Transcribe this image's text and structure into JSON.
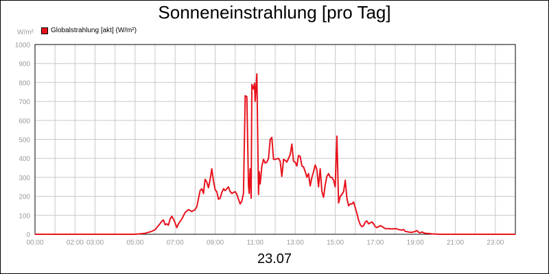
{
  "chart_data": {
    "type": "line",
    "title": "Sonneneinstrahlung [pro Tag]",
    "ylabel": "W/m²",
    "date_label": "23.07",
    "legend": {
      "position": "top-left"
    },
    "grid": true,
    "ylim": [
      0,
      1000
    ],
    "y_ticks": [
      0,
      100,
      200,
      300,
      400,
      500,
      600,
      700,
      800,
      900,
      1000
    ],
    "xlim": [
      "00:00",
      "24:00"
    ],
    "x_tick_labels": [
      {
        "at": "00:00",
        "label": "00:00"
      },
      {
        "at": "02:00",
        "label": "02:00"
      },
      {
        "at": "03:00",
        "label": "03:00"
      },
      {
        "at": "05:00",
        "label": "05:00"
      },
      {
        "at": "07:00",
        "label": "07:00"
      },
      {
        "at": "09:00",
        "label": "09:00"
      },
      {
        "at": "11:00",
        "label": "11:00"
      },
      {
        "at": "13:00",
        "label": "13:00"
      },
      {
        "at": "15:00",
        "label": "15:00"
      },
      {
        "at": "17:00",
        "label": "17:00"
      },
      {
        "at": "19:00",
        "label": "19:00"
      },
      {
        "at": "21:00",
        "label": "21:00"
      },
      {
        "at": "23:00",
        "label": "23:00"
      }
    ],
    "series": [
      {
        "name": "Globalstrahlung [akt] (W/m²)",
        "color": "#e8101a",
        "points": [
          [
            "00:00",
            0
          ],
          [
            "05:00",
            0
          ],
          [
            "05:30",
            5
          ],
          [
            "05:50",
            15
          ],
          [
            "06:00",
            25
          ],
          [
            "06:10",
            45
          ],
          [
            "06:20",
            68
          ],
          [
            "06:25",
            75
          ],
          [
            "06:30",
            50
          ],
          [
            "06:35",
            55
          ],
          [
            "06:40",
            48
          ],
          [
            "06:45",
            80
          ],
          [
            "06:50",
            95
          ],
          [
            "06:55",
            80
          ],
          [
            "07:00",
            60
          ],
          [
            "07:05",
            35
          ],
          [
            "07:10",
            55
          ],
          [
            "07:20",
            80
          ],
          [
            "07:30",
            115
          ],
          [
            "07:40",
            130
          ],
          [
            "07:50",
            120
          ],
          [
            "08:00",
            130
          ],
          [
            "08:05",
            145
          ],
          [
            "08:15",
            230
          ],
          [
            "08:20",
            240
          ],
          [
            "08:25",
            215
          ],
          [
            "08:30",
            290
          ],
          [
            "08:35",
            275
          ],
          [
            "08:40",
            245
          ],
          [
            "08:45",
            290
          ],
          [
            "08:50",
            345
          ],
          [
            "08:55",
            280
          ],
          [
            "09:00",
            235
          ],
          [
            "09:05",
            225
          ],
          [
            "09:10",
            185
          ],
          [
            "09:15",
            190
          ],
          [
            "09:20",
            220
          ],
          [
            "09:25",
            240
          ],
          [
            "09:30",
            230
          ],
          [
            "09:40",
            250
          ],
          [
            "09:45",
            225
          ],
          [
            "09:50",
            215
          ],
          [
            "10:00",
            225
          ],
          [
            "10:05",
            210
          ],
          [
            "10:10",
            185
          ],
          [
            "10:15",
            160
          ],
          [
            "10:20",
            175
          ],
          [
            "10:25",
            215
          ],
          [
            "10:30",
            730
          ],
          [
            "10:35",
            725
          ],
          [
            "10:40",
            255
          ],
          [
            "10:42",
            215
          ],
          [
            "10:45",
            345
          ],
          [
            "10:48",
            190
          ],
          [
            "10:50",
            790
          ],
          [
            "10:55",
            765
          ],
          [
            "10:58",
            795
          ],
          [
            "11:00",
            700
          ],
          [
            "11:05",
            845
          ],
          [
            "11:10",
            210
          ],
          [
            "11:12",
            330
          ],
          [
            "11:15",
            265
          ],
          [
            "11:20",
            360
          ],
          [
            "11:25",
            395
          ],
          [
            "11:30",
            375
          ],
          [
            "11:35",
            380
          ],
          [
            "11:40",
            400
          ],
          [
            "11:45",
            500
          ],
          [
            "11:50",
            510
          ],
          [
            "11:55",
            395
          ],
          [
            "12:00",
            395
          ],
          [
            "12:10",
            400
          ],
          [
            "12:15",
            385
          ],
          [
            "12:20",
            305
          ],
          [
            "12:25",
            395
          ],
          [
            "12:30",
            390
          ],
          [
            "12:35",
            380
          ],
          [
            "12:40",
            400
          ],
          [
            "12:45",
            420
          ],
          [
            "12:50",
            475
          ],
          [
            "12:55",
            385
          ],
          [
            "13:00",
            380
          ],
          [
            "13:05",
            360
          ],
          [
            "13:10",
            415
          ],
          [
            "13:15",
            410
          ],
          [
            "13:20",
            360
          ],
          [
            "13:25",
            355
          ],
          [
            "13:30",
            330
          ],
          [
            "13:35",
            300
          ],
          [
            "13:40",
            320
          ],
          [
            "13:45",
            255
          ],
          [
            "13:50",
            300
          ],
          [
            "13:55",
            330
          ],
          [
            "14:00",
            365
          ],
          [
            "14:05",
            340
          ],
          [
            "14:10",
            250
          ],
          [
            "14:15",
            345
          ],
          [
            "14:20",
            225
          ],
          [
            "14:25",
            195
          ],
          [
            "14:30",
            260
          ],
          [
            "14:35",
            305
          ],
          [
            "14:40",
            320
          ],
          [
            "14:45",
            300
          ],
          [
            "14:50",
            300
          ],
          [
            "14:55",
            285
          ],
          [
            "15:00",
            250
          ],
          [
            "15:05",
            517
          ],
          [
            "15:10",
            165
          ],
          [
            "15:15",
            200
          ],
          [
            "15:20",
            210
          ],
          [
            "15:25",
            225
          ],
          [
            "15:30",
            285
          ],
          [
            "15:35",
            190
          ],
          [
            "15:40",
            150
          ],
          [
            "15:45",
            160
          ],
          [
            "15:50",
            160
          ],
          [
            "15:55",
            170
          ],
          [
            "16:00",
            140
          ],
          [
            "16:05",
            110
          ],
          [
            "16:10",
            75
          ],
          [
            "16:15",
            50
          ],
          [
            "16:20",
            40
          ],
          [
            "16:25",
            45
          ],
          [
            "16:30",
            65
          ],
          [
            "16:35",
            70
          ],
          [
            "16:40",
            55
          ],
          [
            "16:45",
            60
          ],
          [
            "16:50",
            65
          ],
          [
            "16:55",
            55
          ],
          [
            "17:00",
            40
          ],
          [
            "17:05",
            35
          ],
          [
            "17:10",
            40
          ],
          [
            "17:15",
            45
          ],
          [
            "17:20",
            42
          ],
          [
            "17:25",
            35
          ],
          [
            "17:30",
            30
          ],
          [
            "17:40",
            30
          ],
          [
            "17:50",
            28
          ],
          [
            "18:00",
            30
          ],
          [
            "18:10",
            25
          ],
          [
            "18:20",
            22
          ],
          [
            "18:25",
            25
          ],
          [
            "18:30",
            15
          ],
          [
            "18:40",
            12
          ],
          [
            "18:50",
            10
          ],
          [
            "19:00",
            15
          ],
          [
            "19:05",
            20
          ],
          [
            "19:10",
            10
          ],
          [
            "19:15",
            8
          ],
          [
            "19:20",
            12
          ],
          [
            "19:25",
            8
          ],
          [
            "19:30",
            5
          ],
          [
            "19:40",
            4
          ],
          [
            "19:50",
            2
          ],
          [
            "20:00",
            1
          ],
          [
            "20:15",
            0
          ],
          [
            "24:00",
            0
          ]
        ]
      }
    ]
  }
}
